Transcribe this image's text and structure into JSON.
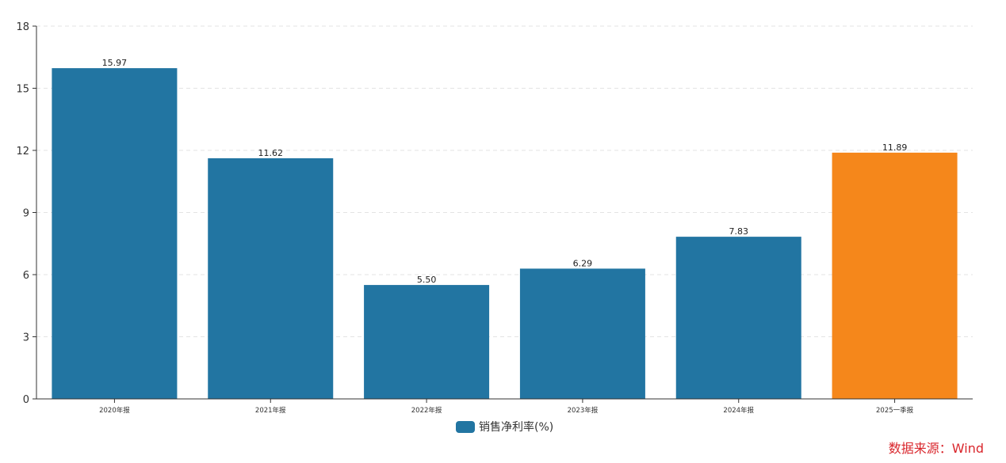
{
  "chart_data": {
    "type": "bar",
    "categories": [
      "2020年报",
      "2021年报",
      "2022年报",
      "2023年报",
      "2024年报",
      "2025一季报"
    ],
    "series": [
      {
        "name": "销售净利率(%)",
        "values": [
          15.97,
          11.62,
          5.5,
          6.29,
          7.83,
          11.89
        ]
      }
    ],
    "value_labels": [
      "15.97",
      "11.62",
      "5.50",
      "6.29",
      "7.83",
      "11.89"
    ],
    "ylim": [
      0,
      18
    ],
    "yticks": [
      0,
      3,
      6,
      9,
      12,
      15,
      18
    ],
    "grid": true,
    "legend_position": "bottom-center",
    "colors": {
      "bar": "#2275a2",
      "highlight": "#f5871b",
      "highlight_index": 5,
      "axis": "#333333",
      "grid": "#e3e3e3"
    }
  },
  "source_label": "数据来源：Wind"
}
